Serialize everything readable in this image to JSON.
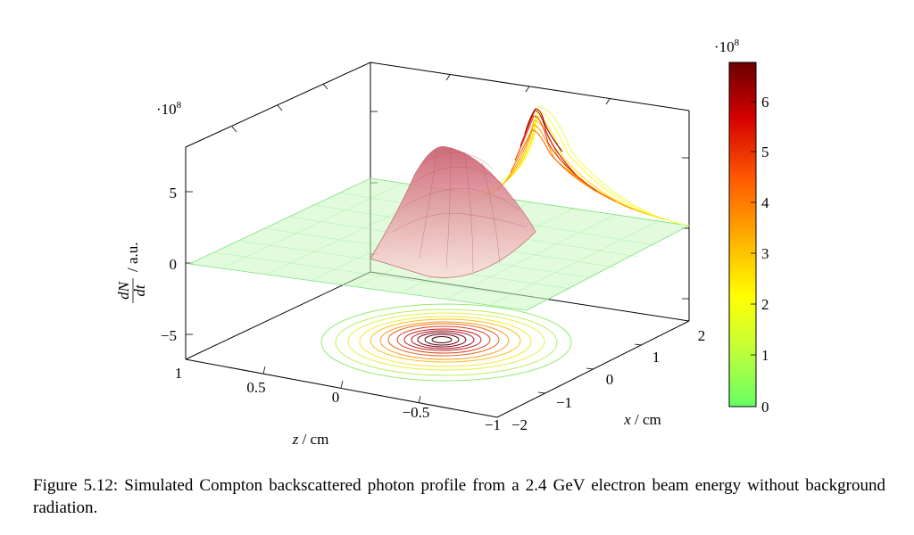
{
  "figure": {
    "type": "3d-surface-with-contour",
    "z_axis_label": "z / cm",
    "x_axis_label": "x / cm",
    "y_axis_label_top": "dN",
    "y_axis_label_bottom": "dt",
    "y_axis_label_unit": "/ a.u.",
    "y_scale_label": "·10",
    "y_scale_exp": "8",
    "colorbar_scale_label": "·10",
    "colorbar_scale_exp": "8",
    "colorbar_colors": [
      "#7a0000",
      "#d40000",
      "#ff5a00",
      "#ffb400",
      "#ffff00",
      "#66ff66"
    ],
    "z_ticks": [
      "1",
      "0.5",
      "0",
      "−0.5",
      "−1"
    ],
    "x_ticks": [
      "−2",
      "−1",
      "0",
      "1",
      "2"
    ],
    "y_ticks": [
      "5",
      "0",
      "−5"
    ],
    "colorbar_ticks": [
      "6",
      "5",
      "4",
      "3",
      "2",
      "1",
      "0"
    ]
  },
  "caption": {
    "text": "Figure 5.12: Simulated Compton backscattered photon profile from a 2.4 GeV electron beam energy without background radiation."
  }
}
